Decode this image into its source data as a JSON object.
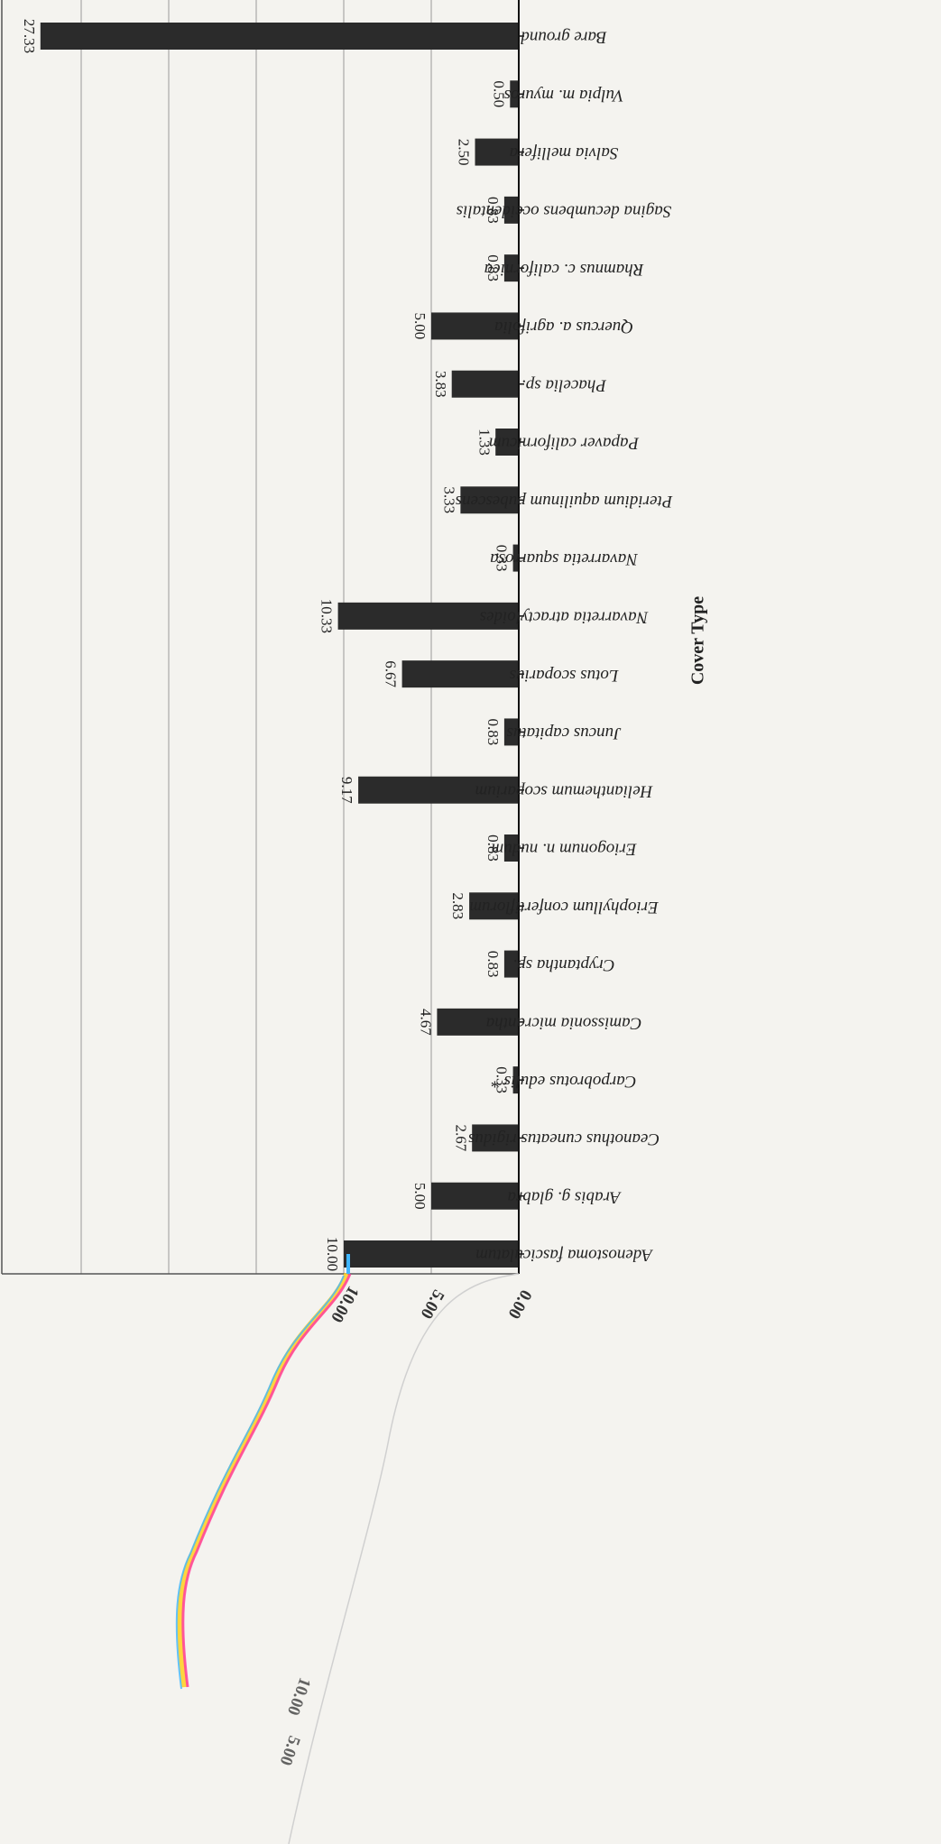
{
  "chart_data": {
    "type": "bar",
    "orientation": "vertical-bars-rotated-page",
    "xlabel": "Cover Type",
    "ylabel": "",
    "ylim": [
      0,
      30
    ],
    "yticks": [
      "0.00",
      "5.00",
      "10.00"
    ],
    "grid": true,
    "colors": {
      "bar": "#2b2b2b",
      "grid": "#9a9a9a",
      "background": "#f4f3ef"
    },
    "categories": [
      "Adenostoma fasciculatum",
      "Arabis g. glabra",
      "Ceanothus cuneatus rigidus",
      "Carpobrotus edulis *",
      "Camissonia micrantha",
      "Cryptantha sp.",
      "Eriophyllum confertiflorum",
      "Eriogonum n. nudum",
      "Helianthemum scoparium",
      "Juncus capitatus",
      "Lotus scoparius",
      "Navarretia atractyloides",
      "Navarretia squarrosa",
      "Pteridium aquilinum pubescens",
      "Papaver californicum",
      "Phacelia sp.",
      "Quercus a. agrifolia",
      "Rhamnus c. californica",
      "Sagina decumbens occidentalis",
      "Salvia mellifera",
      "Vulpia m. myuros",
      "Bare ground"
    ],
    "values": [
      10.0,
      5.0,
      2.67,
      0.33,
      4.67,
      0.83,
      2.83,
      0.83,
      9.17,
      0.83,
      6.67,
      10.33,
      0.33,
      3.33,
      1.33,
      3.83,
      5.0,
      0.83,
      0.83,
      2.5,
      0.5,
      27.33
    ],
    "value_labels": [
      "10.00",
      "5.00",
      "2.67",
      "0.33",
      "4.67",
      "0.83",
      "2.83",
      "0.83",
      "9.17",
      "0.83",
      "6.67",
      "10.33",
      "0.33",
      "3.33",
      "1.33",
      "3.83",
      "5.00",
      "0.83",
      "0.83",
      "2.50",
      "0.50",
      "27.33"
    ]
  },
  "overlay": {
    "back_page_ticks": [
      "10.00",
      "5.00"
    ]
  }
}
